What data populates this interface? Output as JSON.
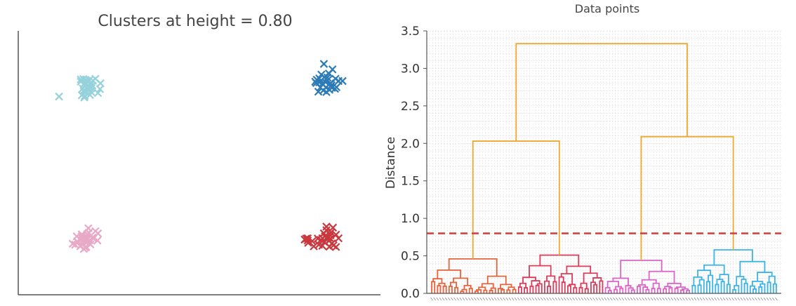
{
  "chart_data": [
    {
      "type": "scatter",
      "title": "Clusters at height = 0.80",
      "xlabel": "",
      "ylabel": "",
      "grid": false,
      "marker": "x",
      "series": [
        {
          "color": "#96d2dc",
          "points": [
            [
              -2.79,
              2.01
            ],
            [
              -2.29,
              1.98
            ],
            [
              -2.28,
              2.03
            ],
            [
              -2.34,
              2.05
            ],
            [
              -2.18,
              2.06
            ],
            [
              -2.02,
              2.12
            ],
            [
              -2.16,
              2.16
            ],
            [
              -2.3,
              2.17
            ],
            [
              -2.23,
              2.22
            ],
            [
              -1.98,
              2.24
            ],
            [
              -2.32,
              2.26
            ],
            [
              -2.19,
              2.31
            ],
            [
              -2.23,
              2.3
            ],
            [
              -2.13,
              2.35
            ],
            [
              -2.17,
              2.38
            ],
            [
              -2.25,
              2.4
            ],
            [
              -2.29,
              2.41
            ],
            [
              -2.36,
              2.47
            ],
            [
              -2.25,
              2.49
            ],
            [
              -2.12,
              2.5
            ],
            [
              -2.27,
              2.53
            ],
            [
              -2.19,
              2.52
            ],
            [
              -2.36,
              2.54
            ],
            [
              -2.31,
              2.55
            ],
            [
              -2.07,
              2.56
            ],
            [
              -1.97,
              2.42
            ],
            [
              -2.3,
              2.2
            ],
            [
              -2.26,
              2.14
            ],
            [
              -2.15,
              2.27
            ],
            [
              -2.2,
              2.33
            ]
          ]
        },
        {
          "color": "#2c7bb6",
          "points": [
            [
              2.45,
              3.02
            ],
            [
              2.62,
              2.85
            ],
            [
              2.55,
              2.72
            ],
            [
              2.4,
              2.69
            ],
            [
              2.36,
              2.57
            ],
            [
              2.46,
              2.61
            ],
            [
              2.68,
              2.56
            ],
            [
              2.74,
              2.49
            ],
            [
              2.31,
              2.53
            ],
            [
              2.39,
              2.5
            ],
            [
              2.52,
              2.51
            ],
            [
              2.48,
              2.46
            ],
            [
              2.82,
              2.49
            ],
            [
              2.3,
              2.43
            ],
            [
              2.42,
              2.41
            ],
            [
              2.56,
              2.39
            ],
            [
              2.6,
              2.36
            ],
            [
              2.38,
              2.29
            ],
            [
              2.49,
              2.29
            ],
            [
              2.61,
              2.28
            ],
            [
              2.67,
              2.25
            ],
            [
              2.56,
              2.22
            ],
            [
              2.44,
              2.2
            ],
            [
              2.7,
              2.3
            ],
            [
              2.34,
              2.16
            ],
            [
              2.5,
              2.15
            ],
            [
              2.28,
              2.47
            ],
            [
              2.58,
              2.43
            ],
            [
              2.36,
              2.45
            ],
            [
              2.52,
              2.6
            ]
          ]
        },
        {
          "color": "#e8a9c6",
          "points": [
            [
              -2.21,
              -2.07
            ],
            [
              -2.07,
              -2.16
            ],
            [
              -2.2,
              -2.21
            ],
            [
              -2.34,
              -2.26
            ],
            [
              -2.23,
              -2.25
            ],
            [
              -2.02,
              -2.23
            ],
            [
              -2.44,
              -2.32
            ],
            [
              -2.34,
              -2.32
            ],
            [
              -2.29,
              -2.33
            ],
            [
              -2.24,
              -2.34
            ],
            [
              -2.13,
              -2.36
            ],
            [
              -2.25,
              -2.39
            ],
            [
              -2.11,
              -2.39
            ],
            [
              -2.23,
              -2.42
            ],
            [
              -2.31,
              -2.45
            ],
            [
              -2.43,
              -2.48
            ],
            [
              -2.27,
              -2.49
            ],
            [
              -2.03,
              -2.45
            ],
            [
              -2.25,
              -2.52
            ],
            [
              -2.33,
              -2.56
            ],
            [
              -2.52,
              -2.55
            ],
            [
              -2.47,
              -2.58
            ],
            [
              -2.17,
              -2.57
            ],
            [
              -2.37,
              -2.63
            ],
            [
              -2.25,
              -2.65
            ],
            [
              -2.3,
              -2.71
            ],
            [
              -2.27,
              -2.67
            ],
            [
              -2.33,
              -2.38
            ],
            [
              -2.38,
              -2.4
            ],
            [
              -2.18,
              -2.44
            ]
          ]
        },
        {
          "color": "#c8383e",
          "points": [
            [
              2.5,
              -2.02
            ],
            [
              2.63,
              -2.05
            ],
            [
              2.5,
              -2.13
            ],
            [
              2.59,
              -2.2
            ],
            [
              2.45,
              -2.23
            ],
            [
              2.69,
              -2.27
            ],
            [
              2.58,
              -2.29
            ],
            [
              2.47,
              -2.32
            ],
            [
              2.51,
              -2.35
            ],
            [
              2.54,
              -2.36
            ],
            [
              2.1,
              -2.39
            ],
            [
              2.13,
              -2.38
            ],
            [
              2.42,
              -2.38
            ],
            [
              2.58,
              -2.39
            ],
            [
              2.74,
              -2.38
            ],
            [
              2.07,
              -2.42
            ],
            [
              2.13,
              -2.45
            ],
            [
              2.39,
              -2.43
            ],
            [
              2.55,
              -2.46
            ],
            [
              2.22,
              -2.47
            ],
            [
              2.46,
              -2.5
            ],
            [
              2.14,
              -2.52
            ],
            [
              2.61,
              -2.54
            ],
            [
              2.35,
              -2.58
            ],
            [
              2.42,
              -2.61
            ],
            [
              2.64,
              -2.6
            ],
            [
              2.25,
              -2.63
            ],
            [
              2.56,
              -2.64
            ],
            [
              2.69,
              -2.65
            ],
            [
              2.33,
              -2.39
            ]
          ]
        }
      ]
    },
    {
      "type": "dendrogram",
      "title": "Data points",
      "xlabel": "",
      "ylabel": "Distance",
      "ylim": [
        0,
        3.5
      ],
      "yticks": [
        "0.0",
        "0.5",
        "1.0",
        "1.5",
        "2.0",
        "2.5",
        "3.0",
        "3.5"
      ],
      "grid": true,
      "cut_height": 0.8,
      "cut_color": "#d23c3c",
      "above_color": "#f0a830",
      "merges": [
        {
          "height": 3.33,
          "color": "#f0a830"
        },
        {
          "height": 2.03,
          "color": "#f0a830"
        },
        {
          "height": 2.09,
          "color": "#f0a830"
        }
      ],
      "clusters": [
        {
          "color": "#e6643c",
          "root_height": 0.46,
          "leaves": 30
        },
        {
          "color": "#dc3c5a",
          "root_height": 0.51,
          "leaves": 30
        },
        {
          "color": "#dc64c8",
          "root_height": 0.44,
          "leaves": 30
        },
        {
          "color": "#3cb4e6",
          "root_height": 0.58,
          "leaves": 30
        }
      ]
    }
  ]
}
